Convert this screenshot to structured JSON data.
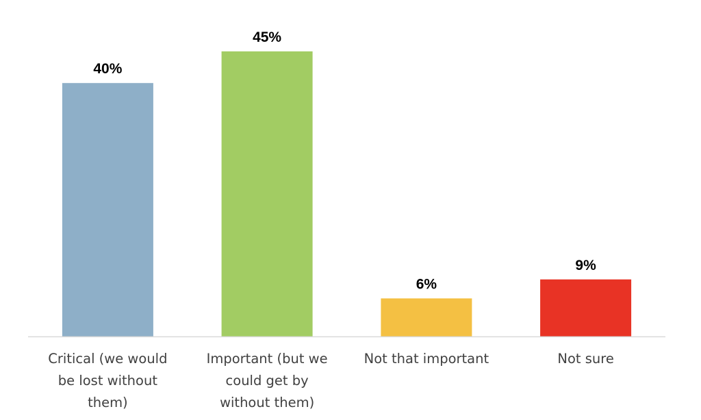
{
  "chart_data": {
    "type": "bar",
    "categories": [
      "Critical (we would be lost without them)",
      "Important (but we could get by without them)",
      "Not that important",
      "Not sure"
    ],
    "category_lines": [
      [
        "Critical (we would",
        "be lost without",
        "them)"
      ],
      [
        "Important (but we",
        "could get by",
        "without them)"
      ],
      [
        "Not that important"
      ],
      [
        "Not sure"
      ]
    ],
    "values": [
      40,
      45,
      6,
      9
    ],
    "data_labels": [
      "40%",
      "45%",
      "6%",
      "9%"
    ],
    "colors": [
      "#8eafc8",
      "#a2cc63",
      "#f4c043",
      "#e83325"
    ],
    "axis_color": "#d9d9d9",
    "title": "",
    "xlabel": "",
    "ylabel": "",
    "ylim": [
      0,
      50
    ],
    "grid": false,
    "legend": "none"
  }
}
